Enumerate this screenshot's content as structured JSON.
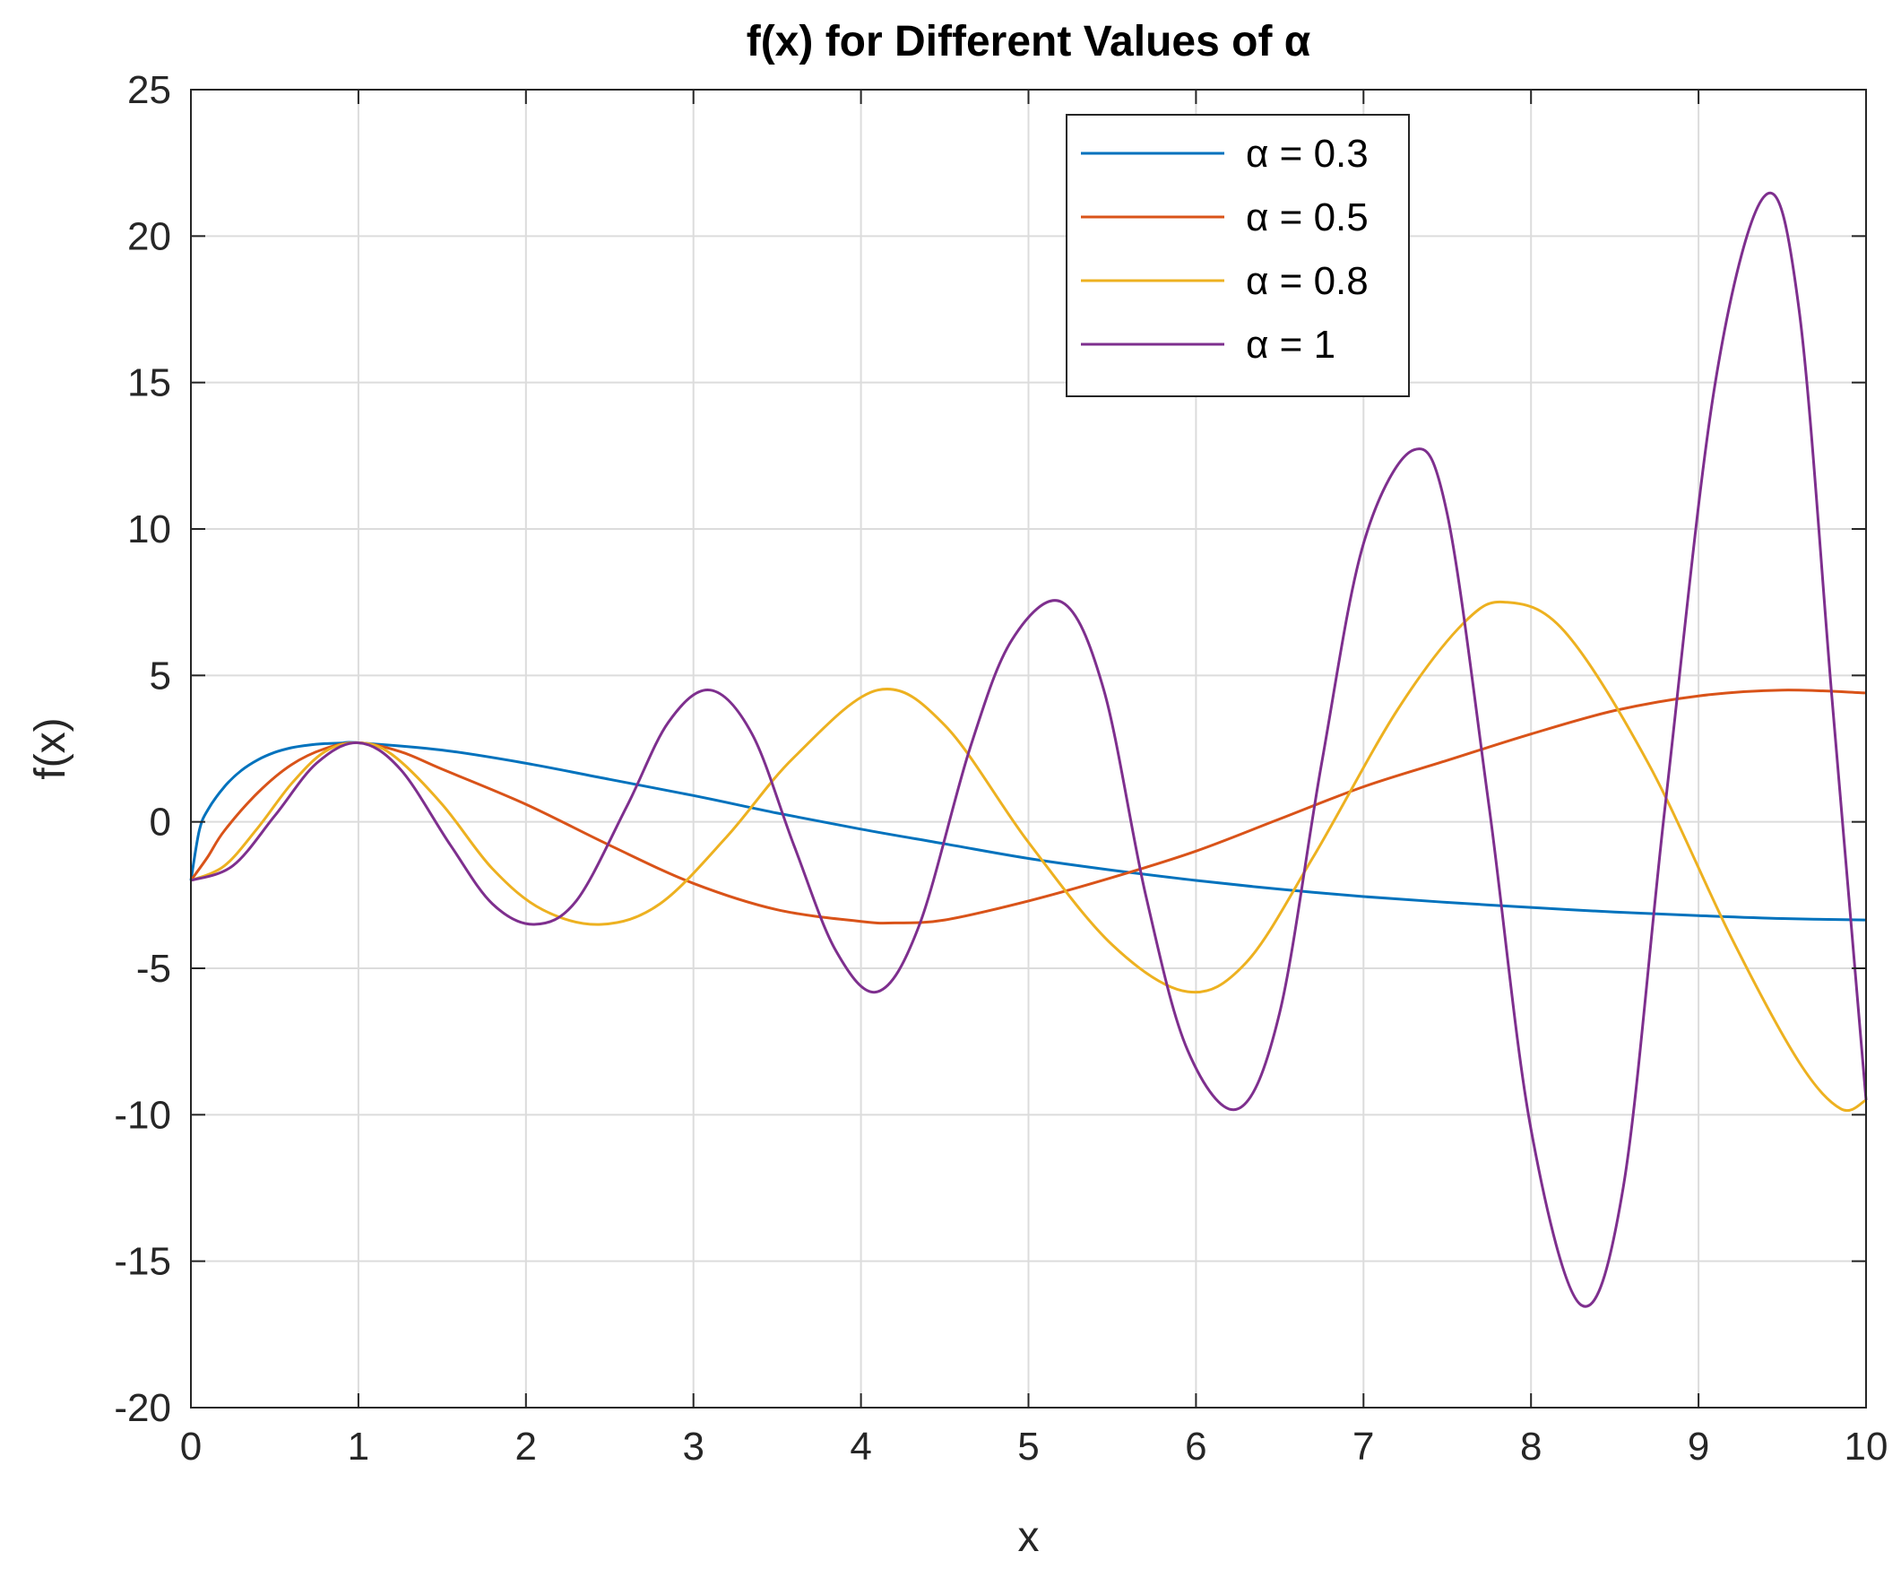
{
  "chart_data": {
    "type": "line",
    "title": "f(x) for Different Values of α",
    "xlabel": "x",
    "ylabel": "f(x)",
    "xlim": [
      0,
      10
    ],
    "ylim": [
      -20,
      25
    ],
    "xticks": [
      0,
      1,
      2,
      3,
      4,
      5,
      6,
      7,
      8,
      9,
      10
    ],
    "yticks": [
      -20,
      -15,
      -10,
      -5,
      0,
      5,
      10,
      15,
      20,
      25
    ],
    "xtick_labels": [
      "0",
      "1",
      "2",
      "3",
      "4",
      "5",
      "6",
      "7",
      "8",
      "9",
      "10"
    ],
    "ytick_labels": [
      "-20",
      "-15",
      "-10",
      "-5",
      "0",
      "5",
      "10",
      "15",
      "20",
      "25"
    ],
    "grid": true,
    "legend_position": "top-right",
    "series": [
      {
        "name": "α = 0.3",
        "color": "#0072BD",
        "x": [
          0,
          0.05,
          0.1,
          0.2,
          0.3,
          0.4,
          0.5,
          0.6,
          0.7,
          0.8,
          0.9,
          1.0,
          1.5,
          2.0,
          2.5,
          3.0,
          3.5,
          4.0,
          4.5,
          5.0,
          5.5,
          6.0,
          6.5,
          7.0,
          7.5,
          8.0,
          8.5,
          9.0,
          9.5,
          10.0
        ],
        "y": [
          -2.0,
          -0.3,
          0.4,
          1.2,
          1.75,
          2.12,
          2.37,
          2.53,
          2.62,
          2.67,
          2.69,
          2.7,
          2.45,
          2.0,
          1.45,
          0.9,
          0.3,
          -0.25,
          -0.75,
          -1.25,
          -1.65,
          -2.0,
          -2.3,
          -2.55,
          -2.75,
          -2.92,
          -3.08,
          -3.2,
          -3.3,
          -3.35
        ]
      },
      {
        "name": "α = 0.5",
        "color": "#D95319",
        "x": [
          0,
          0.1,
          0.2,
          0.4,
          0.6,
          0.8,
          1.0,
          1.25,
          1.5,
          2.0,
          2.5,
          3.0,
          3.5,
          4.0,
          4.2,
          4.5,
          5.0,
          5.5,
          6.0,
          6.5,
          7.0,
          7.5,
          8.0,
          8.5,
          9.0,
          9.5,
          10.0
        ],
        "y": [
          -2.0,
          -1.2,
          -0.3,
          1.0,
          1.95,
          2.5,
          2.7,
          2.4,
          1.8,
          0.6,
          -0.8,
          -2.1,
          -3.0,
          -3.4,
          -3.45,
          -3.35,
          -2.7,
          -1.9,
          -1.0,
          0.1,
          1.2,
          2.1,
          3.0,
          3.8,
          4.3,
          4.5,
          4.4
        ]
      },
      {
        "name": "α = 0.8",
        "color": "#EDB120",
        "x": [
          0,
          0.2,
          0.4,
          0.6,
          0.8,
          1.0,
          1.2,
          1.5,
          1.8,
          2.1,
          2.45,
          2.8,
          3.2,
          3.6,
          4.1,
          4.5,
          5.0,
          5.5,
          5.95,
          6.3,
          6.7,
          7.2,
          7.6,
          7.85,
          8.2,
          8.7,
          9.2,
          9.6,
          9.85,
          10.0
        ],
        "y": [
          -2.0,
          -1.5,
          -0.2,
          1.3,
          2.4,
          2.7,
          2.3,
          0.6,
          -1.6,
          -3.0,
          -3.5,
          -2.8,
          -0.5,
          2.2,
          4.5,
          3.3,
          -0.7,
          -4.2,
          -5.8,
          -4.8,
          -1.2,
          3.8,
          6.8,
          7.5,
          6.5,
          2.0,
          -4.0,
          -8.2,
          -9.8,
          -9.5
        ]
      },
      {
        "name": "α = 1",
        "color": "#7E2F8E",
        "x": [
          0,
          0.25,
          0.5,
          0.75,
          1.0,
          1.25,
          1.55,
          1.8,
          2.05,
          2.3,
          2.6,
          2.85,
          3.1,
          3.35,
          3.6,
          3.85,
          4.1,
          4.35,
          4.65,
          4.9,
          5.2,
          5.45,
          5.7,
          5.95,
          6.25,
          6.5,
          6.75,
          7.0,
          7.3,
          7.5,
          7.75,
          8.0,
          8.3,
          8.55,
          8.8,
          9.1,
          9.4,
          9.6,
          9.8,
          10.0
        ],
        "y": [
          -2.0,
          -1.5,
          0.2,
          2.0,
          2.7,
          1.8,
          -0.8,
          -2.8,
          -3.5,
          -2.7,
          0.5,
          3.4,
          4.5,
          3.0,
          -0.8,
          -4.4,
          -5.8,
          -3.5,
          2.5,
          6.2,
          7.5,
          4.5,
          -2.5,
          -7.8,
          -9.8,
          -6.5,
          2.0,
          9.5,
          12.7,
          10.5,
          0.5,
          -10.5,
          -16.5,
          -12.5,
          0.5,
          15.0,
          21.4,
          17.5,
          4.0,
          -9.5
        ]
      }
    ]
  }
}
